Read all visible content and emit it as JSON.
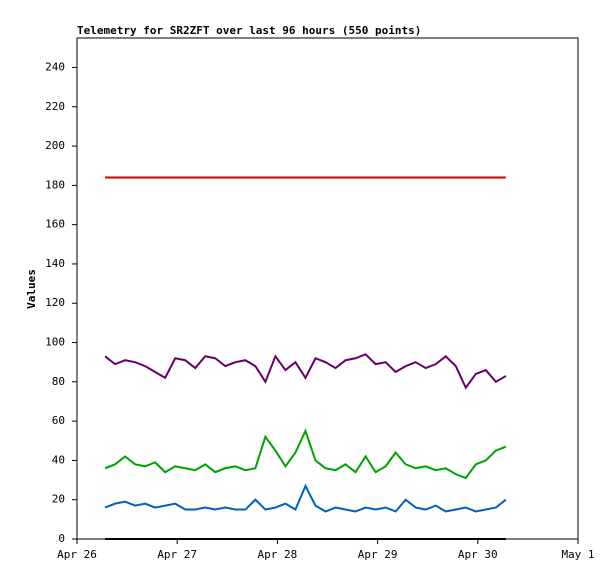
{
  "chart_data": {
    "type": "line",
    "title": "Telemetry for SR2ZFT over last 96 hours (550 points)",
    "y_label": "Values",
    "x": [
      0.28,
      0.38,
      0.48,
      0.58,
      0.68,
      0.78,
      0.88,
      0.98,
      1.08,
      1.18,
      1.28,
      1.38,
      1.48,
      1.58,
      1.68,
      1.78,
      1.88,
      1.98,
      2.08,
      2.18,
      2.28,
      2.38,
      2.48,
      2.58,
      2.68,
      2.78,
      2.88,
      2.98,
      3.08,
      3.18,
      3.28,
      3.38,
      3.48,
      3.58,
      3.68,
      3.78,
      3.88,
      3.98,
      4.08,
      4.18,
      4.28
    ],
    "series": [
      {
        "color": "#cc0000",
        "values": [
          184,
          184,
          184,
          184,
          184,
          184,
          184,
          184,
          184,
          184,
          184,
          184,
          184,
          184,
          184,
          184,
          184,
          184,
          184,
          184,
          184,
          184,
          184,
          184,
          184,
          184,
          184,
          184,
          184,
          184,
          184,
          184,
          184,
          184,
          184,
          184,
          184,
          184,
          184,
          184,
          184
        ]
      },
      {
        "color": "#660066",
        "values": [
          93,
          89,
          91,
          90,
          88,
          85,
          82,
          92,
          91,
          87,
          93,
          92,
          88,
          90,
          91,
          88,
          80,
          93,
          86,
          90,
          82,
          92,
          90,
          87,
          91,
          92,
          94,
          89,
          90,
          85,
          88,
          90,
          87,
          89,
          93,
          88,
          77,
          84,
          86,
          80,
          83
        ]
      },
      {
        "color": "#00a000",
        "values": [
          36,
          38,
          42,
          38,
          37,
          39,
          34,
          37,
          36,
          35,
          38,
          34,
          36,
          37,
          35,
          36,
          52,
          45,
          37,
          44,
          55,
          40,
          36,
          35,
          38,
          34,
          42,
          34,
          37,
          44,
          38,
          36,
          37,
          35,
          36,
          33,
          31,
          38,
          40,
          45,
          47
        ]
      },
      {
        "color": "#0060c0",
        "values": [
          16,
          18,
          19,
          17,
          18,
          16,
          17,
          18,
          15,
          15,
          16,
          15,
          16,
          15,
          15,
          20,
          15,
          16,
          18,
          15,
          27,
          17,
          14,
          16,
          15,
          14,
          16,
          15,
          16,
          14,
          20,
          16,
          15,
          17,
          14,
          15,
          16,
          14,
          15,
          16,
          20
        ]
      },
      {
        "color": "#000000",
        "values": [
          0,
          0,
          0,
          0,
          0,
          0,
          0,
          0,
          0,
          0,
          0,
          0,
          0,
          0,
          0,
          0,
          0,
          0,
          0,
          0,
          0,
          0,
          0,
          0,
          0,
          0,
          0,
          0,
          0,
          0,
          0,
          0,
          0,
          0,
          0,
          0,
          0,
          0,
          0,
          0,
          0
        ]
      }
    ],
    "xlim": [
      0,
      5
    ],
    "xticks": [
      {
        "value": 0,
        "label": "Apr 26"
      },
      {
        "value": 1,
        "label": "Apr 27"
      },
      {
        "value": 2,
        "label": "Apr 28"
      },
      {
        "value": 3,
        "label": "Apr 29"
      },
      {
        "value": 4,
        "label": "Apr 30"
      },
      {
        "value": 5,
        "label": "May 1"
      }
    ],
    "ylim": [
      0,
      255
    ],
    "yticks": [
      0,
      20,
      40,
      60,
      80,
      100,
      120,
      140,
      160,
      180,
      200,
      220,
      240
    ]
  }
}
